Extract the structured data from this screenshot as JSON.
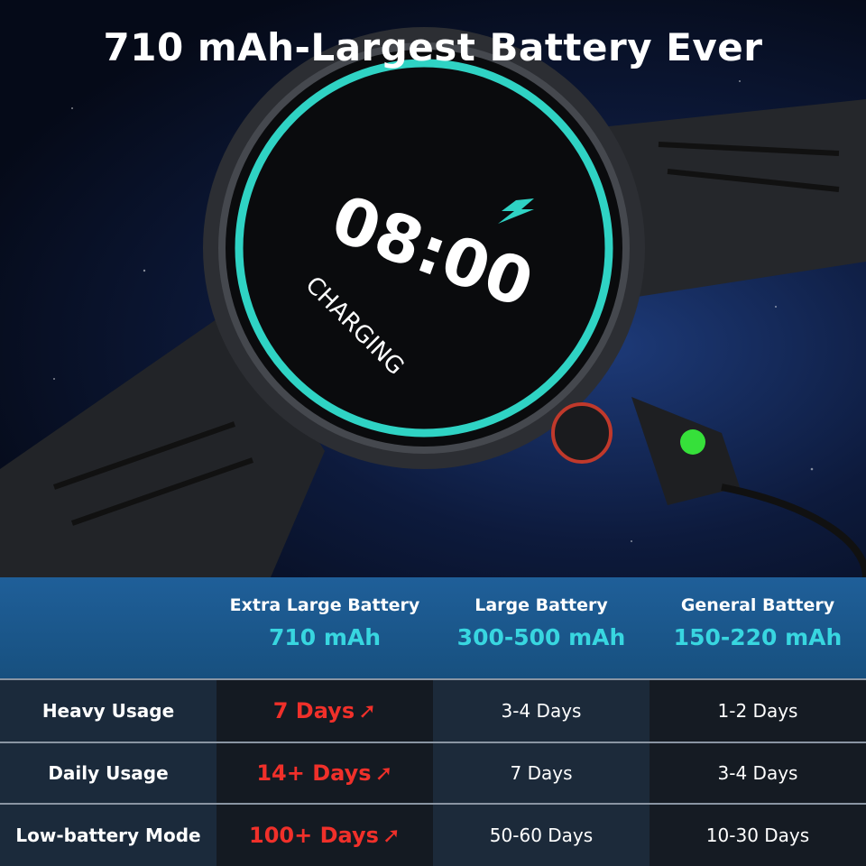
{
  "title": "710 mAh-Largest Battery Ever",
  "watch": {
    "time": "08:00",
    "status": "CHARGING",
    "ring_color": "#2fd3c4",
    "charge_icon": "lightning-bolt-icon",
    "magnet_led_color": "#36e03a"
  },
  "table": {
    "columns": [
      {
        "name": "Extra Large Battery",
        "capacity": "710 mAh"
      },
      {
        "name": "Large Battery",
        "capacity": "300-500 mAh"
      },
      {
        "name": "General Battery",
        "capacity": "150-220 mAh"
      }
    ],
    "rows": [
      {
        "label": "Heavy Usage",
        "values": [
          "7 Days",
          "3-4 Days",
          "1-2 Days"
        ]
      },
      {
        "label": "Daily Usage",
        "values": [
          "14+ Days",
          "7 Days",
          "3-4 Days"
        ]
      },
      {
        "label": "Low-battery Mode",
        "values": [
          "100+ Days",
          "50-60 Days",
          "10-30 Days"
        ]
      }
    ],
    "highlight_color": "#f0302a",
    "capacity_color": "#38d6e0"
  }
}
